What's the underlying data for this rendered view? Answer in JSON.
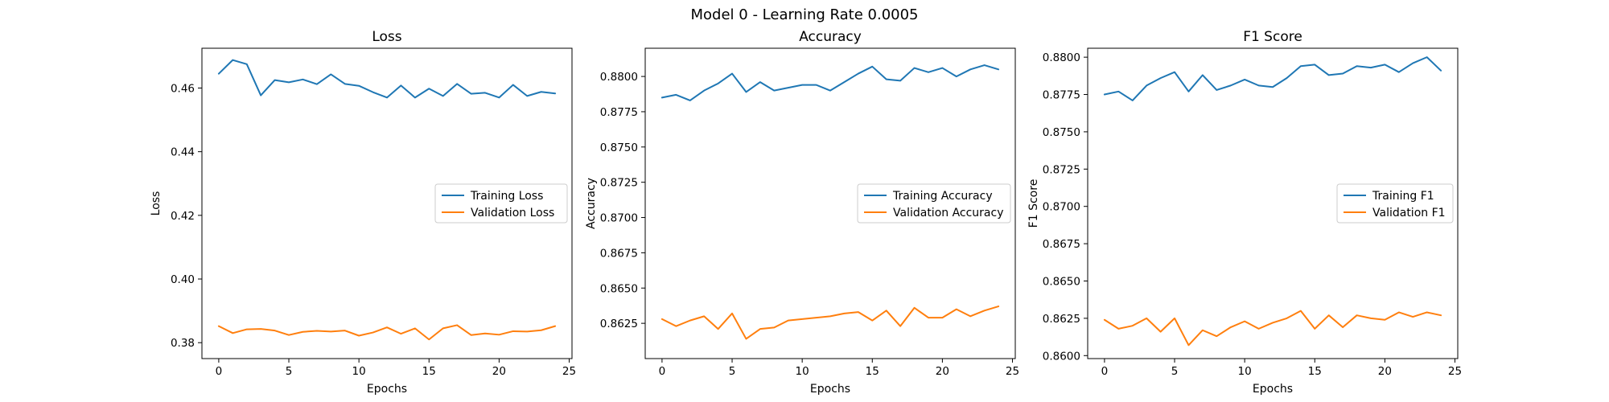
{
  "figure": {
    "suptitle": "Model 0 - Learning Rate 0.0005"
  },
  "colors": {
    "training": "#1f77b4",
    "validation": "#ff7f0e",
    "legend_border": "#cccccc"
  },
  "chart_data": [
    {
      "type": "line",
      "title": "Loss",
      "xlabel": "Epochs",
      "ylabel": "Loss",
      "xlim": [
        -1.2,
        25.2
      ],
      "ylim": [
        0.375,
        0.4725
      ],
      "xticks": [
        0,
        5,
        10,
        15,
        20,
        25
      ],
      "yticks": [
        0.38,
        0.4,
        0.42,
        0.44,
        0.46
      ],
      "ytick_labels": [
        "0.38",
        "0.40",
        "0.42",
        "0.44",
        "0.46"
      ],
      "legend_loc": "center-right",
      "grid": false,
      "x": [
        0,
        1,
        2,
        3,
        4,
        5,
        6,
        7,
        8,
        9,
        10,
        11,
        12,
        13,
        14,
        15,
        16,
        17,
        18,
        19,
        20,
        21,
        22,
        23,
        24
      ],
      "series": [
        {
          "name": "Training Loss",
          "color_key": "training",
          "values": [
            0.4645,
            0.4688,
            0.4675,
            0.4577,
            0.4625,
            0.4618,
            0.4627,
            0.4612,
            0.4643,
            0.4613,
            0.4607,
            0.4587,
            0.457,
            0.4608,
            0.457,
            0.4598,
            0.4575,
            0.4613,
            0.4582,
            0.4585,
            0.457,
            0.461,
            0.4575,
            0.4588,
            0.4583
          ]
        },
        {
          "name": "Validation Loss",
          "color_key": "validation",
          "values": [
            0.3852,
            0.383,
            0.3842,
            0.3843,
            0.3838,
            0.3824,
            0.3834,
            0.3837,
            0.3835,
            0.3838,
            0.3822,
            0.3832,
            0.3848,
            0.3828,
            0.3845,
            0.381,
            0.3845,
            0.3855,
            0.3824,
            0.3829,
            0.3825,
            0.3836,
            0.3835,
            0.3839,
            0.3852
          ]
        }
      ]
    },
    {
      "type": "line",
      "title": "Accuracy",
      "xlabel": "Epochs",
      "ylabel": "Accuracy",
      "xlim": [
        -1.2,
        25.2
      ],
      "ylim": [
        0.86,
        0.882
      ],
      "xticks": [
        0,
        5,
        10,
        15,
        20,
        25
      ],
      "yticks": [
        0.8625,
        0.865,
        0.8675,
        0.87,
        0.8725,
        0.875,
        0.8775,
        0.88
      ],
      "ytick_labels": [
        "0.8625",
        "0.8650",
        "0.8675",
        "0.8700",
        "0.8725",
        "0.8750",
        "0.8775",
        "0.8800"
      ],
      "legend_loc": "center-right",
      "grid": false,
      "x": [
        0,
        1,
        2,
        3,
        4,
        5,
        6,
        7,
        8,
        9,
        10,
        11,
        12,
        13,
        14,
        15,
        16,
        17,
        18,
        19,
        20,
        21,
        22,
        23,
        24
      ],
      "series": [
        {
          "name": "Training Accuracy",
          "color_key": "training",
          "values": [
            0.8785,
            0.8787,
            0.8783,
            0.879,
            0.8795,
            0.8802,
            0.8789,
            0.8796,
            0.879,
            0.8792,
            0.8794,
            0.8794,
            0.879,
            0.8796,
            0.8802,
            0.8807,
            0.8798,
            0.8797,
            0.8806,
            0.8803,
            0.8806,
            0.88,
            0.8805,
            0.8808,
            0.8805
          ]
        },
        {
          "name": "Validation Accuracy",
          "color_key": "validation",
          "values": [
            0.8628,
            0.8623,
            0.8627,
            0.863,
            0.8621,
            0.8632,
            0.8614,
            0.8621,
            0.8622,
            0.8627,
            0.8628,
            0.8629,
            0.863,
            0.8632,
            0.8633,
            0.8627,
            0.8634,
            0.8623,
            0.8636,
            0.8629,
            0.8629,
            0.8635,
            0.863,
            0.8634,
            0.8637
          ]
        }
      ]
    },
    {
      "type": "line",
      "title": "F1 Score",
      "xlabel": "Epochs",
      "ylabel": "F1 Score",
      "xlim": [
        -1.2,
        25.2
      ],
      "ylim": [
        0.8598,
        0.8806
      ],
      "xticks": [
        0,
        5,
        10,
        15,
        20,
        25
      ],
      "yticks": [
        0.86,
        0.8625,
        0.865,
        0.8675,
        0.87,
        0.8725,
        0.875,
        0.8775,
        0.88
      ],
      "ytick_labels": [
        "0.8600",
        "0.8625",
        "0.8650",
        "0.8675",
        "0.8700",
        "0.8725",
        "0.8750",
        "0.8775",
        "0.8800"
      ],
      "legend_loc": "center-right",
      "grid": false,
      "x": [
        0,
        1,
        2,
        3,
        4,
        5,
        6,
        7,
        8,
        9,
        10,
        11,
        12,
        13,
        14,
        15,
        16,
        17,
        18,
        19,
        20,
        21,
        22,
        23,
        24
      ],
      "series": [
        {
          "name": "Training F1",
          "color_key": "training",
          "values": [
            0.8775,
            0.8777,
            0.8771,
            0.8781,
            0.8786,
            0.879,
            0.8777,
            0.8788,
            0.8778,
            0.8781,
            0.8785,
            0.8781,
            0.878,
            0.8786,
            0.8794,
            0.8795,
            0.8788,
            0.8789,
            0.8794,
            0.8793,
            0.8795,
            0.879,
            0.8796,
            0.88,
            0.8791
          ]
        },
        {
          "name": "Validation F1",
          "color_key": "validation",
          "values": [
            0.8624,
            0.8618,
            0.862,
            0.8625,
            0.8616,
            0.8625,
            0.8607,
            0.8617,
            0.8613,
            0.8619,
            0.8623,
            0.8618,
            0.8622,
            0.8625,
            0.863,
            0.8618,
            0.8627,
            0.8619,
            0.8627,
            0.8625,
            0.8624,
            0.8629,
            0.8626,
            0.8629,
            0.8627
          ]
        }
      ]
    }
  ]
}
